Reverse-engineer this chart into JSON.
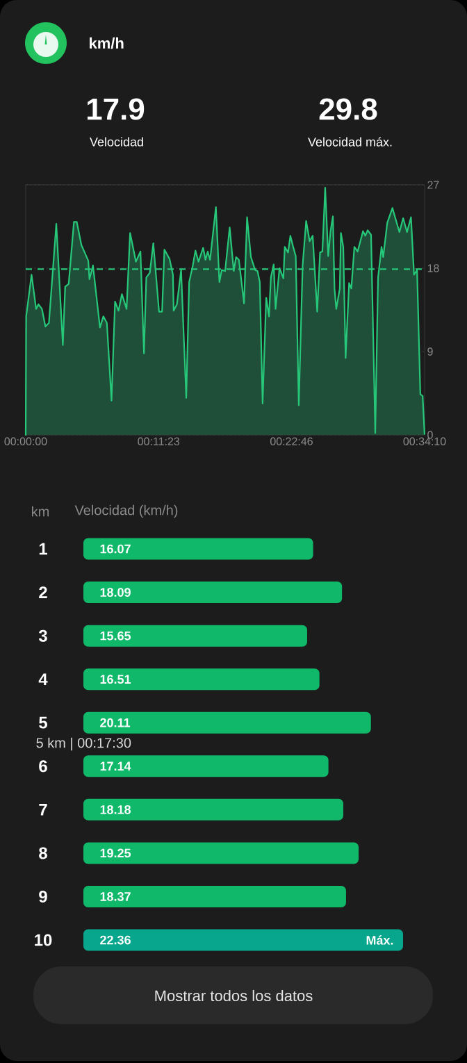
{
  "chart_data": [
    {
      "type": "other",
      "title": "km/h",
      "annotations": [
        "17.9",
        "Velocidad",
        "29.8",
        "Velocidad máx."
      ]
    },
    {
      "type": "area",
      "color": "#27c77a",
      "xlim": [
        0,
        34.167
      ],
      "ylim": [
        0,
        27
      ],
      "xticks": [
        {
          "value": 0,
          "label": "00:00:00"
        },
        {
          "value": 11.383,
          "label": "00:11:23"
        },
        {
          "value": 22.767,
          "label": "00:22:46"
        },
        {
          "value": 34.167,
          "label": "00:34:10"
        }
      ],
      "yticks": [
        0,
        9,
        18,
        27
      ],
      "grid": "y",
      "ref_lines": [
        {
          "axis": "y",
          "value": 17.9,
          "color": "#27c77a",
          "line_style": "dashed"
        }
      ],
      "x": [
        0,
        0.04,
        0.5,
        0.89,
        1.09,
        1.39,
        1.69,
        1.99,
        2.62,
        3.18,
        3.38,
        3.68,
        4.13,
        4.37,
        4.77,
        5.36,
        5.46,
        5.76,
        6.36,
        6.65,
        6.95,
        7.35,
        7.65,
        7.95,
        8.24,
        8.64,
        8.94,
        9.44,
        9.83,
        10.13,
        10.33,
        10.63,
        10.93,
        11.42,
        11.68,
        11.88,
        12.32,
        12.61,
        12.67,
        12.95,
        13.31,
        13.75,
        14.0,
        14.3,
        14.54,
        14.8,
        15.2,
        15.4,
        15.59,
        15.79,
        16.29,
        16.59,
        16.79,
        17.08,
        17.47,
        17.82,
        18.02,
        18.26,
        18.7,
        18.96,
        19.29,
        19.65,
        19.85,
        20.05,
        20.29,
        20.6,
        20.84,
        21.0,
        21.24,
        21.4,
        21.74,
        22.07,
        22.19,
        22.47,
        22.67,
        22.93,
        23.13,
        23.39,
        23.72,
        24.02,
        24.32,
        24.58,
        24.97,
        25.21,
        25.41,
        25.65,
        25.91,
        26.11,
        26.31,
        26.45,
        26.6,
        26.9,
        27.0,
        27.2,
        27.4,
        27.7,
        27.89,
        28.15,
        28.43,
        28.89,
        29.09,
        29.29,
        29.58,
        29.94,
        30.18,
        30.48,
        30.62,
        30.97,
        31.41,
        31.73,
        32.01,
        32.33,
        32.66,
        33.0,
        33.26,
        33.52,
        33.8,
        34.0,
        34.16
      ],
      "values": [
        0,
        12.8,
        17.3,
        13.6,
        14.1,
        13.6,
        11.7,
        12.1,
        22.8,
        9.7,
        16.0,
        16.3,
        23.0,
        23.0,
        20.5,
        18.8,
        16.8,
        18.3,
        11.6,
        12.8,
        12.1,
        3.7,
        14.4,
        13.4,
        15.2,
        13.6,
        21.8,
        18.7,
        19.8,
        8.8,
        17.0,
        17.5,
        20.7,
        13.3,
        13.3,
        20.0,
        19.0,
        17.3,
        13.4,
        14.1,
        17.8,
        4.0,
        16.5,
        18.2,
        19.9,
        18.7,
        20.2,
        18.9,
        19.8,
        18.9,
        24.6,
        16.5,
        17.8,
        17.7,
        22.4,
        17.7,
        19.2,
        18.9,
        14.2,
        23.5,
        19.2,
        17.8,
        17.7,
        16.5,
        3.4,
        14.8,
        12.8,
        17.0,
        18.4,
        13.6,
        18.0,
        16.9,
        20.3,
        19.7,
        21.5,
        20.2,
        19.3,
        3.2,
        18.3,
        23.1,
        20.9,
        21.5,
        13.3,
        19.7,
        19.8,
        26.7,
        19.3,
        22.0,
        23.6,
        15.8,
        13.6,
        15.8,
        21.8,
        20.3,
        8.3,
        16.4,
        15.8,
        20.3,
        19.8,
        22.0,
        21.5,
        22.1,
        21.6,
        0.2,
        17.0,
        20.3,
        19.2,
        22.9,
        24.5,
        23.1,
        21.9,
        23.4,
        21.9,
        23.5,
        17.3,
        17.8,
        4.4,
        4.2,
        0.1
      ]
    },
    {
      "type": "bar",
      "orientation": "horizontal",
      "ylabel": "km",
      "xlabel": "Velocidad (km/h)",
      "categories": [
        "1",
        "2",
        "3",
        "4",
        "5",
        "6",
        "7",
        "8",
        "9",
        "10"
      ],
      "values": [
        16.07,
        18.09,
        15.65,
        16.51,
        20.11,
        17.14,
        18.18,
        19.25,
        18.37,
        22.36
      ],
      "colors": [
        "#10b86a",
        "#10b86a",
        "#10b86a",
        "#10b86a",
        "#10b86a",
        "#10b86a",
        "#10b86a",
        "#10b86a",
        "#10b86a",
        "#08a68c"
      ],
      "data_labels": true,
      "annotations": [
        {
          "text": "Máx.",
          "x": 22.36,
          "y": "10"
        },
        "5 km | 00:17:30",
        "Mostrar todos los datos"
      ]
    }
  ]
}
